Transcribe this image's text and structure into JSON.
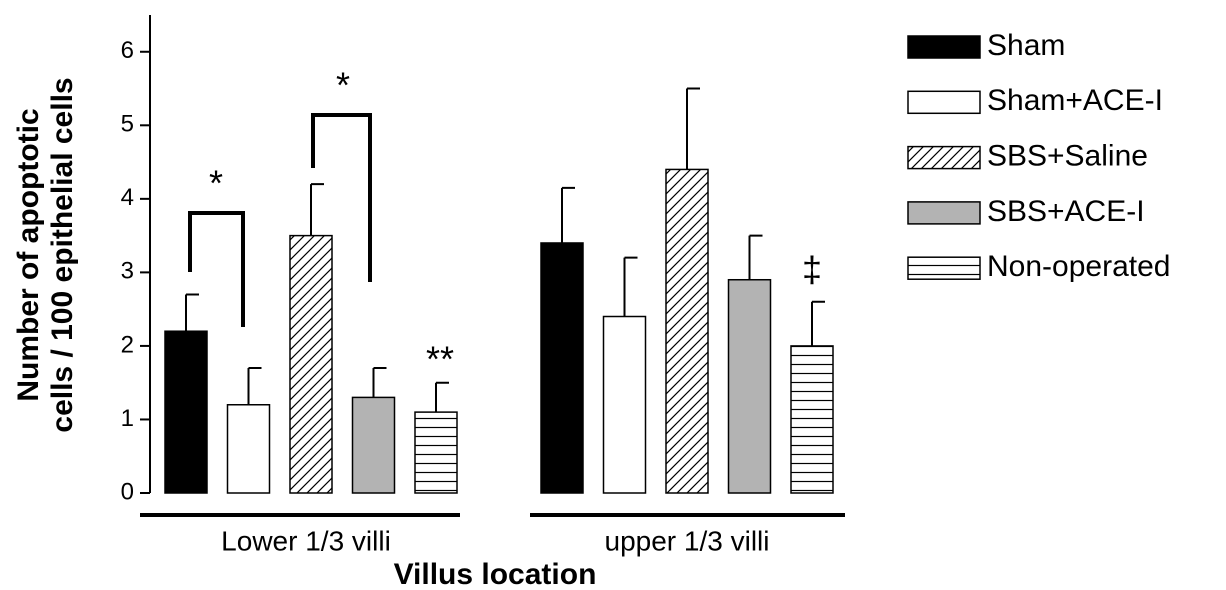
{
  "chart_data": {
    "type": "bar",
    "ylabel": [
      "Number of apoptotic",
      "cells / 100 epithelial cells"
    ],
    "xlabel": "Villus location",
    "categories": [
      "Lower 1/3 villi",
      "upper 1/3 villi"
    ],
    "series": [
      {
        "name": "Sham",
        "color": "#000000",
        "values": [
          2.2,
          3.4
        ],
        "errors": [
          0.5,
          0.75
        ]
      },
      {
        "name": "Sham+ACE-I",
        "color": "#ffffff",
        "values": [
          1.2,
          2.4
        ],
        "errors": [
          0.5,
          0.8
        ]
      },
      {
        "name": "SBS+Saline",
        "color": "#ffffff",
        "pattern": "diagonal",
        "values": [
          3.5,
          4.4
        ],
        "errors": [
          0.7,
          1.1
        ]
      },
      {
        "name": "SBS+ACE-I",
        "color": "#b3b3b3",
        "values": [
          1.3,
          2.9
        ],
        "errors": [
          0.4,
          0.6
        ]
      },
      {
        "name": "Non-operated",
        "color": "#ffffff",
        "pattern": "horizontal",
        "values": [
          1.1,
          2.0
        ],
        "errors": [
          0.4,
          0.6
        ]
      }
    ],
    "ylim": [
      0,
      6.5
    ],
    "yticks": [
      0,
      1,
      2,
      3,
      4,
      5,
      6
    ],
    "annotations": [
      "*",
      "*",
      "**",
      "‡"
    ],
    "legend": "right"
  }
}
